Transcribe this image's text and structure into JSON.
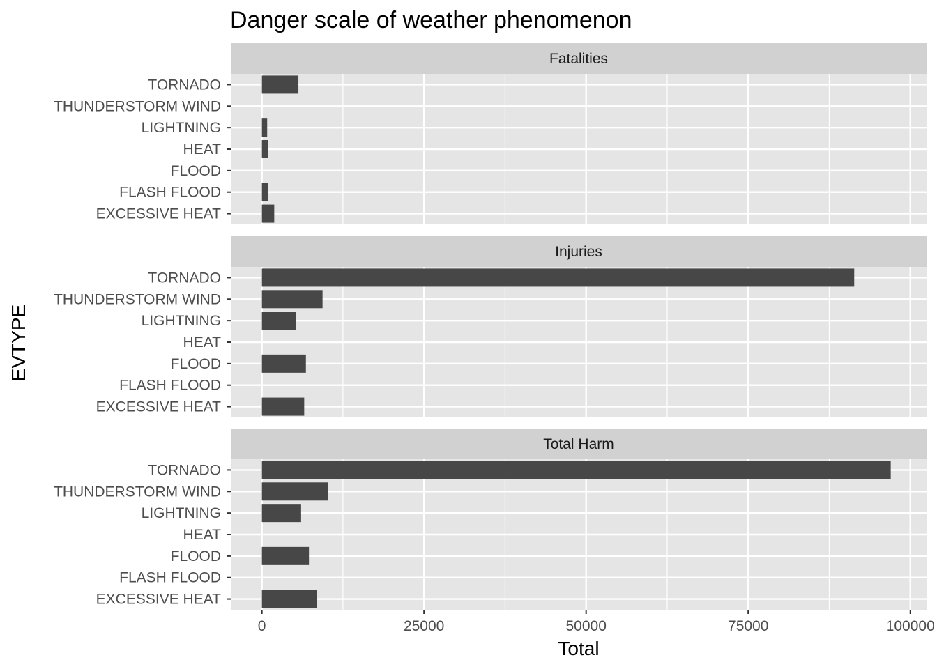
{
  "chart_data": {
    "type": "bar",
    "orientation": "horizontal",
    "title": "Danger scale of weather phenomenon",
    "xlabel": "Total",
    "ylabel": "EVTYPE",
    "categories": [
      "EXCESSIVE HEAT",
      "FLASH FLOOD",
      "FLOOD",
      "HEAT",
      "LIGHTNING",
      "THUNDERSTORM WIND",
      "TORNADO"
    ],
    "xlim": [
      -4800,
      102500
    ],
    "x_ticks": [
      0,
      25000,
      50000,
      75000,
      100000
    ],
    "x_tick_labels": [
      "0",
      "25000",
      "50000",
      "75000",
      "100000"
    ],
    "grid": true,
    "bar_color": "#474747",
    "panel_background": "#e5e5e5",
    "strip_background": "#d1d1d1",
    "facets": [
      {
        "label": "Fatalities",
        "values": [
          1903,
          978,
          null,
          937,
          816,
          null,
          5633
        ]
      },
      {
        "label": "Injuries",
        "values": [
          6525,
          null,
          6789,
          null,
          5230,
          9353,
          91346
        ]
      },
      {
        "label": "Total Harm",
        "values": [
          8428,
          null,
          7259,
          null,
          6046,
          10200,
          96979
        ]
      }
    ]
  }
}
